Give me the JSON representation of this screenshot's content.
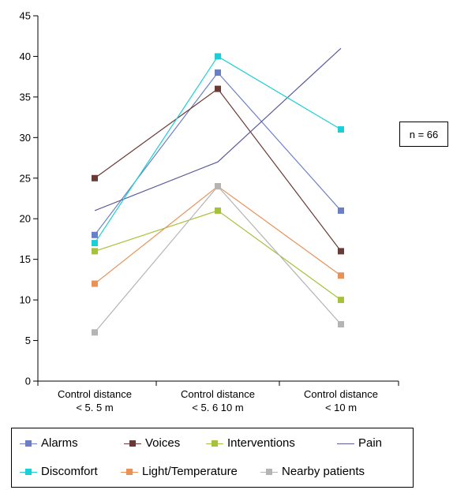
{
  "chart_data": {
    "type": "line",
    "categories": [
      "Control distance\n< 5. 5 m",
      "Control distance\n< 5. 6   10 m",
      "Control distance\n< 10 m"
    ],
    "ylim": [
      0,
      45
    ],
    "yticks": [
      0,
      5,
      10,
      15,
      20,
      25,
      30,
      35,
      40,
      45
    ],
    "grid": false,
    "legend_position": "bottom",
    "series": [
      {
        "name": "Alarms",
        "values": [
          18,
          38,
          21
        ],
        "color": "#6b7fc4",
        "marker": true
      },
      {
        "name": "Voices",
        "values": [
          25,
          36,
          16
        ],
        "color": "#6b3a36",
        "marker": true
      },
      {
        "name": "Interventions",
        "values": [
          16,
          21,
          10
        ],
        "color": "#a6c23a",
        "marker": true
      },
      {
        "name": "Pain",
        "values": [
          21,
          27,
          41
        ],
        "color": "#5c5c9c",
        "marker": false
      },
      {
        "name": "Discomfort",
        "values": [
          17,
          40,
          31
        ],
        "color": "#1ccfd6",
        "marker": true
      },
      {
        "name": "Light/Temperature",
        "values": [
          12,
          24,
          13
        ],
        "color": "#e8925a",
        "marker": true
      },
      {
        "name": "Nearby patients",
        "values": [
          6,
          24,
          7
        ],
        "color": "#b4b4b4",
        "marker": true
      }
    ]
  },
  "annotation": "n = 66"
}
